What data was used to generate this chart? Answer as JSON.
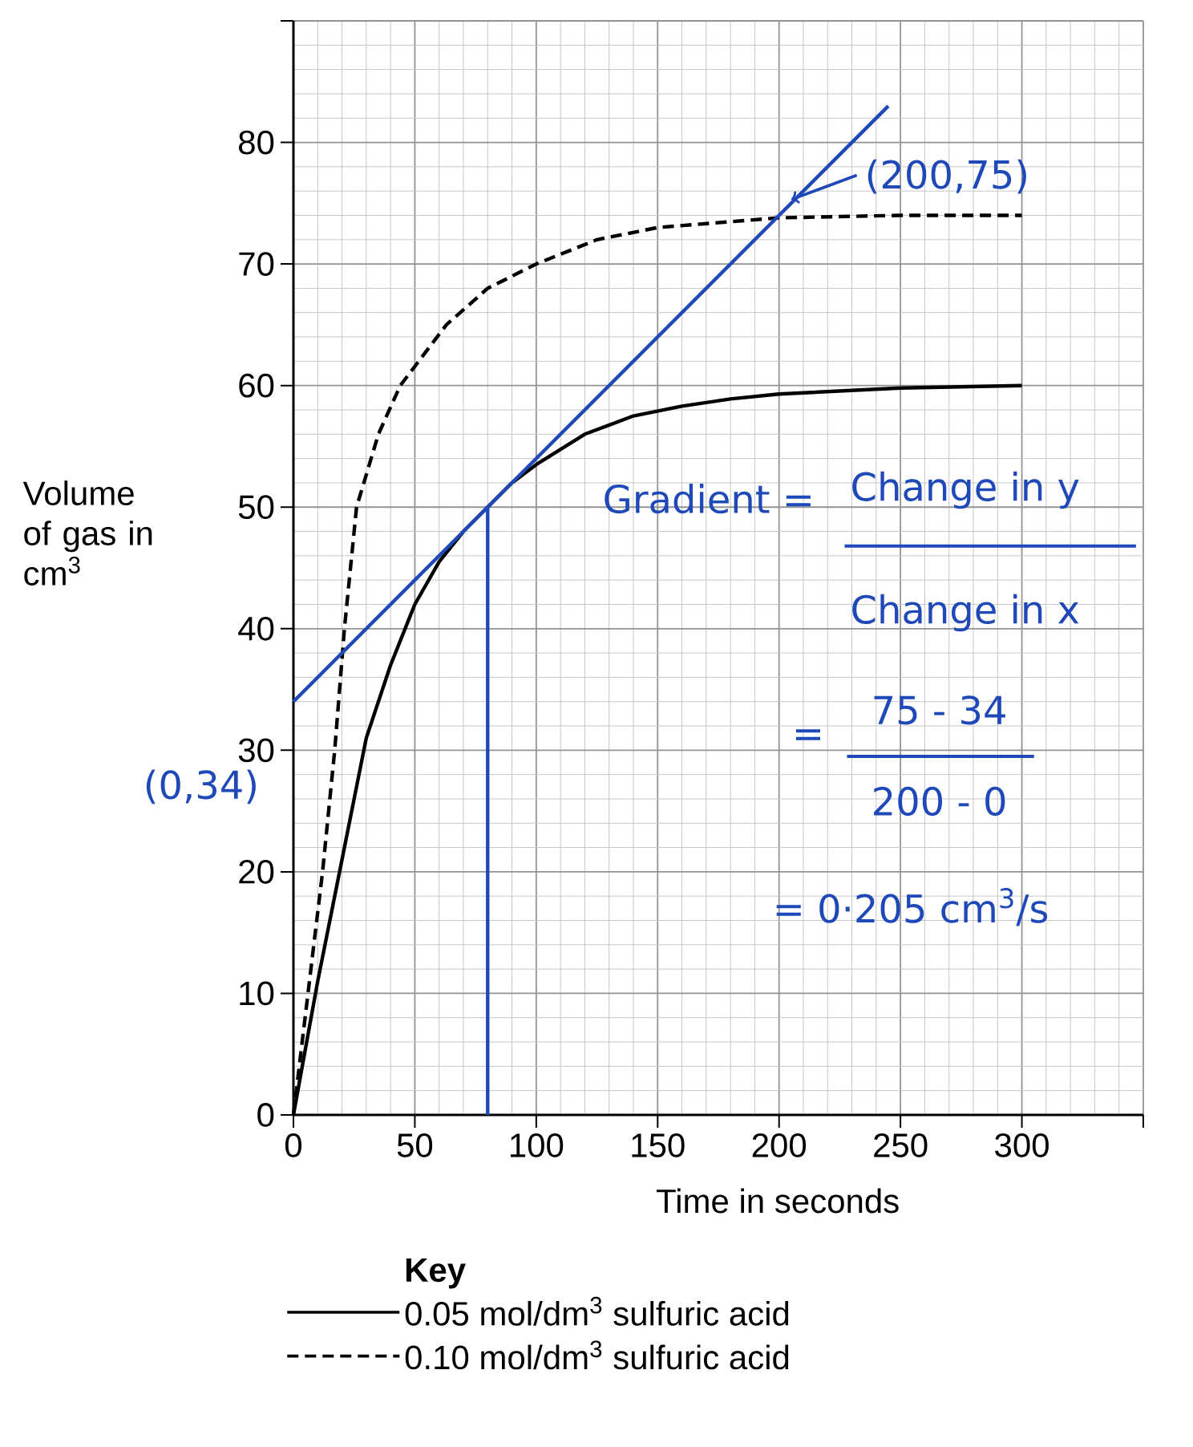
{
  "chart_data": {
    "type": "line",
    "xlabel": "Time in seconds",
    "ylabel": "Volume of gas in cm$^{3}$",
    "legend_title": "Key",
    "xlim": [
      0,
      350
    ],
    "ylim": [
      0,
      90
    ],
    "xticks": [
      0,
      50,
      100,
      150,
      200,
      250,
      300,
      {
        "value": 350,
        "label": null
      }
    ],
    "yticks": [
      0,
      10,
      20,
      30,
      40,
      50,
      60,
      70,
      80,
      {
        "value": 90,
        "label": null
      }
    ],
    "grid": true,
    "legend": "bottom",
    "series": [
      {
        "name": "0.05 mol/dm$^{3}$ sulfuric acid",
        "color": "#000000",
        "line_style": "solid",
        "x": [
          0,
          10,
          20,
          30,
          40,
          50,
          60,
          70,
          80,
          90,
          100,
          120,
          140,
          160,
          180,
          200,
          250,
          300
        ],
        "values": [
          0,
          11,
          21,
          31,
          37,
          42,
          45.5,
          48,
          50,
          52,
          53.5,
          56,
          57.5,
          58.3,
          58.9,
          59.3,
          59.8,
          60
        ]
      },
      {
        "name": "0.10 mol/dm$^{3}$ sulfuric acid",
        "color": "#000000",
        "line_style": "dashed",
        "x": [
          0,
          6,
          12,
          17,
          21,
          26,
          35,
          44,
          63,
          80,
          100,
          125,
          150,
          200,
          250,
          300
        ],
        "values": [
          0,
          10,
          20,
          30,
          40,
          50,
          56,
          60,
          65,
          68,
          70,
          72,
          73,
          73.8,
          74,
          74
        ]
      },
      {
        "color": "#1f48b8",
        "line_style": "solid",
        "x": [
          0,
          80,
          245
        ],
        "values": [
          34,
          50,
          83
        ]
      },
      {
        "color": "#1f48b8",
        "line_style": "solid",
        "x": [
          80,
          80
        ],
        "values": [
          0,
          50
        ]
      }
    ],
    "annotations": [
      {
        "text": "(200,75)",
        "x": 200,
        "y": 75
      },
      {
        "text": "(0,34)",
        "x": 0,
        "y": 34
      },
      "Gradient =",
      "Change in y",
      "Change in x",
      "=",
      "75 - 34",
      "200 - 0",
      "= 0·205 cm$^{3}$/s"
    ]
  }
}
